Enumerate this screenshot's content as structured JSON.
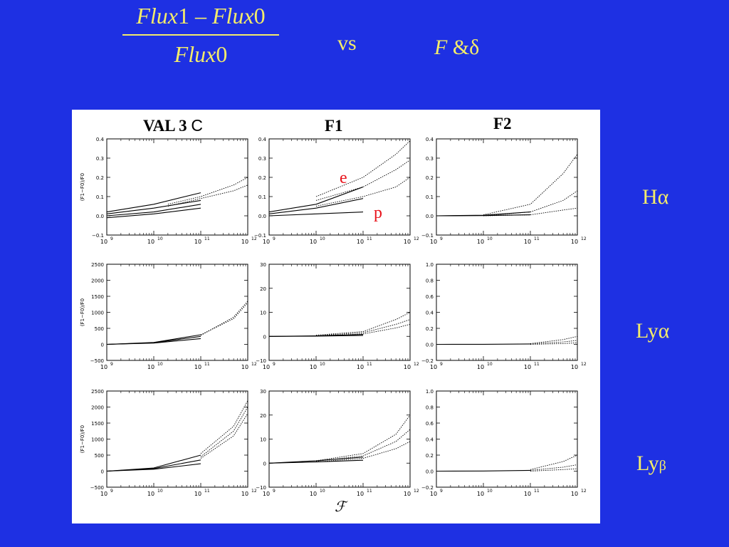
{
  "slide": {
    "formula": {
      "numerator": {
        "a": "Flux",
        "b": "1",
        "minus": " – ",
        "c": "Flux",
        "d": "0"
      },
      "denominator": {
        "a": "Flux",
        "b": "0"
      }
    },
    "vs": "vs",
    "params": {
      "f": "F",
      "rest": " &δ"
    },
    "row_labels": {
      "ha": "Hα",
      "lya": "Lyα",
      "lyb_main": "Ly",
      "lyb_sub": "β"
    },
    "colors": {
      "background": "#1e30e3",
      "text": "#f4ec6a",
      "annotation": "#e8141c",
      "panel": "#ffffff"
    }
  },
  "figure": {
    "col_titles": {
      "val3c_main": "VAL 3",
      "val3c_c": "C",
      "f1": "F1",
      "f2": "F2"
    },
    "annotations": {
      "e": "e",
      "p": "p"
    },
    "x_label": "ℱ"
  },
  "chart_data": {
    "type": "line",
    "x_scale": "log",
    "xlim": [
      1000000000.0,
      1000000000000.0
    ],
    "x_ticks": [
      1000000000.0,
      10000000000.0,
      100000000000.0,
      1000000000000.0
    ],
    "x_tick_labels": [
      [
        "10",
        "9"
      ],
      [
        "10",
        "10"
      ],
      [
        "10",
        "11"
      ],
      [
        "10",
        "12"
      ]
    ],
    "y_label": "(F1−F0)/F0",
    "rows": [
      {
        "line": "Hα",
        "ylim": [
          -0.1,
          0.4
        ],
        "yticks": [
          -0.1,
          0.0,
          0.1,
          0.2,
          0.3,
          0.4
        ],
        "ytick_labels": [
          "−0.1",
          "0.0",
          "0.1",
          "0.2",
          "0.3",
          "0.4"
        ]
      },
      {
        "line": "Lyα",
        "ylim": [
          -500,
          2500
        ],
        "yticks": [
          -500,
          0,
          500,
          1000,
          1500,
          2000,
          2500
        ],
        "ytick_labels": [
          "−500",
          "0",
          "500",
          "1000",
          "1500",
          "2000",
          "2500"
        ]
      },
      {
        "line": "Lyβ",
        "ylim": [
          -500,
          2500
        ],
        "yticks": [
          -500,
          0,
          500,
          1000,
          1500,
          2000,
          2500
        ],
        "ytick_labels": [
          "−500",
          "0",
          "500",
          "1000",
          "1500",
          "2000",
          "2500"
        ]
      }
    ],
    "row_overrides": {
      "F1": [
        {
          "ylim": [
            -0.1,
            0.4
          ],
          "yticks": [
            -0.1,
            0,
            0.1,
            0.2,
            0.3,
            0.4
          ],
          "ytick_labels": [
            "−0.1",
            "0.0",
            "0.1",
            "0.2",
            "0.3",
            "0.4"
          ]
        },
        {
          "ylim": [
            -10,
            30
          ],
          "yticks": [
            -10,
            0,
            10,
            20,
            30
          ],
          "ytick_labels": [
            "−10",
            "0",
            "10",
            "20",
            "30"
          ]
        },
        {
          "ylim": [
            -10,
            30
          ],
          "yticks": [
            -10,
            0,
            10,
            20,
            30
          ],
          "ytick_labels": [
            "−10",
            "0",
            "10",
            "20",
            "30"
          ]
        }
      ],
      "F2": [
        {
          "ylim": [
            -0.1,
            0.4
          ],
          "yticks": [
            -0.1,
            0,
            0.1,
            0.2,
            0.3,
            0.4
          ],
          "ytick_labels": [
            "−0.1",
            "0.0",
            "0.1",
            "0.2",
            "0.3",
            "0.4"
          ]
        },
        {
          "ylim": [
            -0.2,
            1.0
          ],
          "yticks": [
            -0.2,
            0,
            0.2,
            0.4,
            0.6,
            0.8,
            1.0
          ],
          "ytick_labels": [
            "−0.2",
            "0.0",
            "0.2",
            "0.4",
            "0.6",
            "0.8",
            "1.0"
          ]
        },
        {
          "ylim": [
            -0.2,
            1.0
          ],
          "yticks": [
            -0.2,
            0,
            0.2,
            0.4,
            0.6,
            0.8,
            1.0
          ],
          "ytick_labels": [
            "−0.2",
            "0.0",
            "0.2",
            "0.4",
            "0.6",
            "0.8",
            "1.0"
          ]
        }
      ]
    },
    "panels": [
      {
        "id": "val3c-ha",
        "col": 0,
        "row": 0,
        "series": [
          {
            "style": "dotted",
            "x": [
              20000000000.0,
              100000000000.0,
              500000000000.0,
              1000000000000.0
            ],
            "y": [
              0.06,
              0.1,
              0.16,
              0.2
            ]
          },
          {
            "style": "dotted",
            "x": [
              20000000000.0,
              100000000000.0,
              500000000000.0,
              1000000000000.0
            ],
            "y": [
              0.05,
              0.09,
              0.13,
              0.16
            ]
          },
          {
            "style": "solid",
            "x": [
              1000000000.0,
              10000000000.0,
              100000000000.0
            ],
            "y": [
              0.02,
              0.06,
              0.12
            ]
          },
          {
            "style": "solid",
            "x": [
              1000000000.0,
              10000000000.0,
              100000000000.0
            ],
            "y": [
              0.01,
              0.04,
              0.08
            ]
          },
          {
            "style": "solid",
            "x": [
              1000000000.0,
              10000000000.0,
              100000000000.0
            ],
            "y": [
              0.0,
              0.02,
              0.06
            ]
          },
          {
            "style": "solid",
            "x": [
              1000000000.0,
              10000000000.0,
              100000000000.0
            ],
            "y": [
              -0.01,
              0.01,
              0.04
            ]
          }
        ]
      },
      {
        "id": "f1-ha",
        "col": 1,
        "row": 0,
        "series": [
          {
            "style": "dotted",
            "x": [
              10000000000.0,
              100000000000.0,
              500000000000.0,
              1000000000000.0
            ],
            "y": [
              0.1,
              0.2,
              0.32,
              0.39
            ]
          },
          {
            "style": "dotted",
            "x": [
              10000000000.0,
              100000000000.0,
              500000000000.0,
              1000000000000.0
            ],
            "y": [
              0.08,
              0.15,
              0.24,
              0.29
            ]
          },
          {
            "style": "dotted",
            "x": [
              10000000000.0,
              100000000000.0,
              500000000000.0,
              1000000000000.0
            ],
            "y": [
              0.05,
              0.1,
              0.15,
              0.2
            ]
          },
          {
            "style": "solid",
            "x": [
              1000000000.0,
              10000000000.0,
              100000000000.0
            ],
            "y": [
              0.02,
              0.06,
              0.15
            ]
          },
          {
            "style": "solid",
            "x": [
              1000000000.0,
              10000000000.0,
              100000000000.0
            ],
            "y": [
              0.01,
              0.04,
              0.09
            ]
          },
          {
            "style": "solid",
            "x": [
              1000000000.0,
              10000000000.0,
              100000000000.0
            ],
            "y": [
              0.0,
              0.01,
              0.02
            ]
          }
        ]
      },
      {
        "id": "f2-ha",
        "col": 2,
        "row": 0,
        "series": [
          {
            "style": "dotted",
            "x": [
              10000000000.0,
              100000000000.0,
              500000000000.0,
              1000000000000.0
            ],
            "y": [
              0.005,
              0.06,
              0.22,
              0.32
            ]
          },
          {
            "style": "dotted",
            "x": [
              10000000000.0,
              100000000000.0,
              500000000000.0,
              1000000000000.0
            ],
            "y": [
              0.0,
              0.02,
              0.08,
              0.13
            ]
          },
          {
            "style": "dotted",
            "x": [
              10000000000.0,
              100000000000.0,
              500000000000.0,
              1000000000000.0
            ],
            "y": [
              0.0,
              0.005,
              0.03,
              0.04
            ]
          },
          {
            "style": "solid",
            "x": [
              1000000000.0,
              10000000000.0,
              100000000000.0
            ],
            "y": [
              0.0,
              0.003,
              0.02
            ]
          },
          {
            "style": "solid",
            "x": [
              1000000000.0,
              10000000000.0,
              100000000000.0
            ],
            "y": [
              0.0,
              0.001,
              0.005
            ]
          }
        ]
      },
      {
        "id": "val3c-lya",
        "col": 0,
        "row": 1,
        "series": [
          {
            "style": "dotted",
            "x": [
              100000000000.0,
              500000000000.0,
              1000000000000.0
            ],
            "y": [
              300,
              800,
              1300
            ]
          },
          {
            "style": "dotted",
            "x": [
              100000000000.0,
              500000000000.0,
              1000000000000.0
            ],
            "y": [
              280,
              850,
              1350
            ]
          },
          {
            "style": "solid",
            "x": [
              1000000000.0,
              10000000000.0,
              100000000000.0
            ],
            "y": [
              0,
              60,
              300
            ]
          },
          {
            "style": "solid",
            "x": [
              1000000000.0,
              10000000000.0,
              100000000000.0
            ],
            "y": [
              0,
              50,
              250
            ]
          },
          {
            "style": "solid",
            "x": [
              1000000000.0,
              10000000000.0,
              100000000000.0
            ],
            "y": [
              0,
              40,
              180
            ]
          }
        ]
      },
      {
        "id": "f1-lya",
        "col": 1,
        "row": 1,
        "series": [
          {
            "style": "dotted",
            "x": [
              10000000000.0,
              100000000000.0,
              500000000000.0,
              1000000000000.0
            ],
            "y": [
              0.5,
              2,
              7,
              10
            ]
          },
          {
            "style": "dotted",
            "x": [
              10000000000.0,
              100000000000.0,
              500000000000.0,
              1000000000000.0
            ],
            "y": [
              0.3,
              1.5,
              5,
              7
            ]
          },
          {
            "style": "dotted",
            "x": [
              10000000000.0,
              100000000000.0,
              500000000000.0,
              1000000000000.0
            ],
            "y": [
              0.2,
              1,
              3.5,
              5
            ]
          },
          {
            "style": "solid",
            "x": [
              1000000000.0,
              10000000000.0,
              100000000000.0
            ],
            "y": [
              0,
              0.2,
              0.8
            ]
          },
          {
            "style": "solid",
            "x": [
              1000000000.0,
              10000000000.0,
              100000000000.0
            ],
            "y": [
              0,
              0.1,
              0.4
            ]
          }
        ]
      },
      {
        "id": "f2-lya",
        "col": 2,
        "row": 1,
        "series": [
          {
            "style": "dotted",
            "x": [
              100000000000.0,
              500000000000.0,
              1000000000000.0
            ],
            "y": [
              0.01,
              0.06,
              0.1
            ]
          },
          {
            "style": "dotted",
            "x": [
              100000000000.0,
              500000000000.0,
              1000000000000.0
            ],
            "y": [
              0.005,
              0.03,
              0.05
            ]
          },
          {
            "style": "dotted",
            "x": [
              100000000000.0,
              500000000000.0,
              1000000000000.0
            ],
            "y": [
              0.0,
              0.01,
              0.02
            ]
          },
          {
            "style": "solid",
            "x": [
              1000000000.0,
              10000000000.0,
              100000000000.0
            ],
            "y": [
              0,
              0.001,
              0.005
            ]
          }
        ]
      },
      {
        "id": "val3c-lyb",
        "col": 0,
        "row": 2,
        "series": [
          {
            "style": "dotted",
            "x": [
              100000000000.0,
              500000000000.0,
              1000000000000.0
            ],
            "y": [
              550,
              1400,
              2200
            ]
          },
          {
            "style": "dotted",
            "x": [
              100000000000.0,
              500000000000.0,
              1000000000000.0
            ],
            "y": [
              450,
              1250,
              2000
            ]
          },
          {
            "style": "dotted",
            "x": [
              100000000000.0,
              500000000000.0,
              1000000000000.0
            ],
            "y": [
              400,
              1100,
              1800
            ]
          },
          {
            "style": "solid",
            "x": [
              1000000000.0,
              10000000000.0,
              100000000000.0
            ],
            "y": [
              0,
              100,
              500
            ]
          },
          {
            "style": "solid",
            "x": [
              1000000000.0,
              10000000000.0,
              100000000000.0
            ],
            "y": [
              0,
              80,
              350
            ]
          },
          {
            "style": "solid",
            "x": [
              1000000000.0,
              10000000000.0,
              100000000000.0
            ],
            "y": [
              0,
              60,
              230
            ]
          }
        ]
      },
      {
        "id": "f1-lyb",
        "col": 1,
        "row": 2,
        "series": [
          {
            "style": "dotted",
            "x": [
              10000000000.0,
              100000000000.0,
              500000000000.0,
              1000000000000.0
            ],
            "y": [
              1,
              4,
              12,
              20
            ]
          },
          {
            "style": "dotted",
            "x": [
              10000000000.0,
              100000000000.0,
              500000000000.0,
              1000000000000.0
            ],
            "y": [
              0.8,
              3,
              9,
              14
            ]
          },
          {
            "style": "dotted",
            "x": [
              10000000000.0,
              100000000000.0,
              500000000000.0,
              1000000000000.0
            ],
            "y": [
              0.5,
              2,
              6,
              9
            ]
          },
          {
            "style": "solid",
            "x": [
              1000000000.0,
              10000000000.0,
              100000000000.0
            ],
            "y": [
              0,
              1,
              2.5
            ]
          },
          {
            "style": "solid",
            "x": [
              1000000000.0,
              10000000000.0,
              100000000000.0
            ],
            "y": [
              0,
              0.5,
              1.2
            ]
          }
        ]
      },
      {
        "id": "f2-lyb",
        "col": 2,
        "row": 2,
        "series": [
          {
            "style": "dotted",
            "x": [
              100000000000.0,
              500000000000.0,
              1000000000000.0
            ],
            "y": [
              0.02,
              0.12,
              0.2
            ]
          },
          {
            "style": "dotted",
            "x": [
              100000000000.0,
              500000000000.0,
              1000000000000.0
            ],
            "y": [
              0.01,
              0.05,
              0.08
            ]
          },
          {
            "style": "dotted",
            "x": [
              100000000000.0,
              500000000000.0,
              1000000000000.0
            ],
            "y": [
              0.0,
              0.02,
              0.03
            ]
          },
          {
            "style": "solid",
            "x": [
              1000000000.0,
              10000000000.0,
              100000000000.0
            ],
            "y": [
              0,
              0.002,
              0.01
            ]
          }
        ]
      }
    ]
  }
}
